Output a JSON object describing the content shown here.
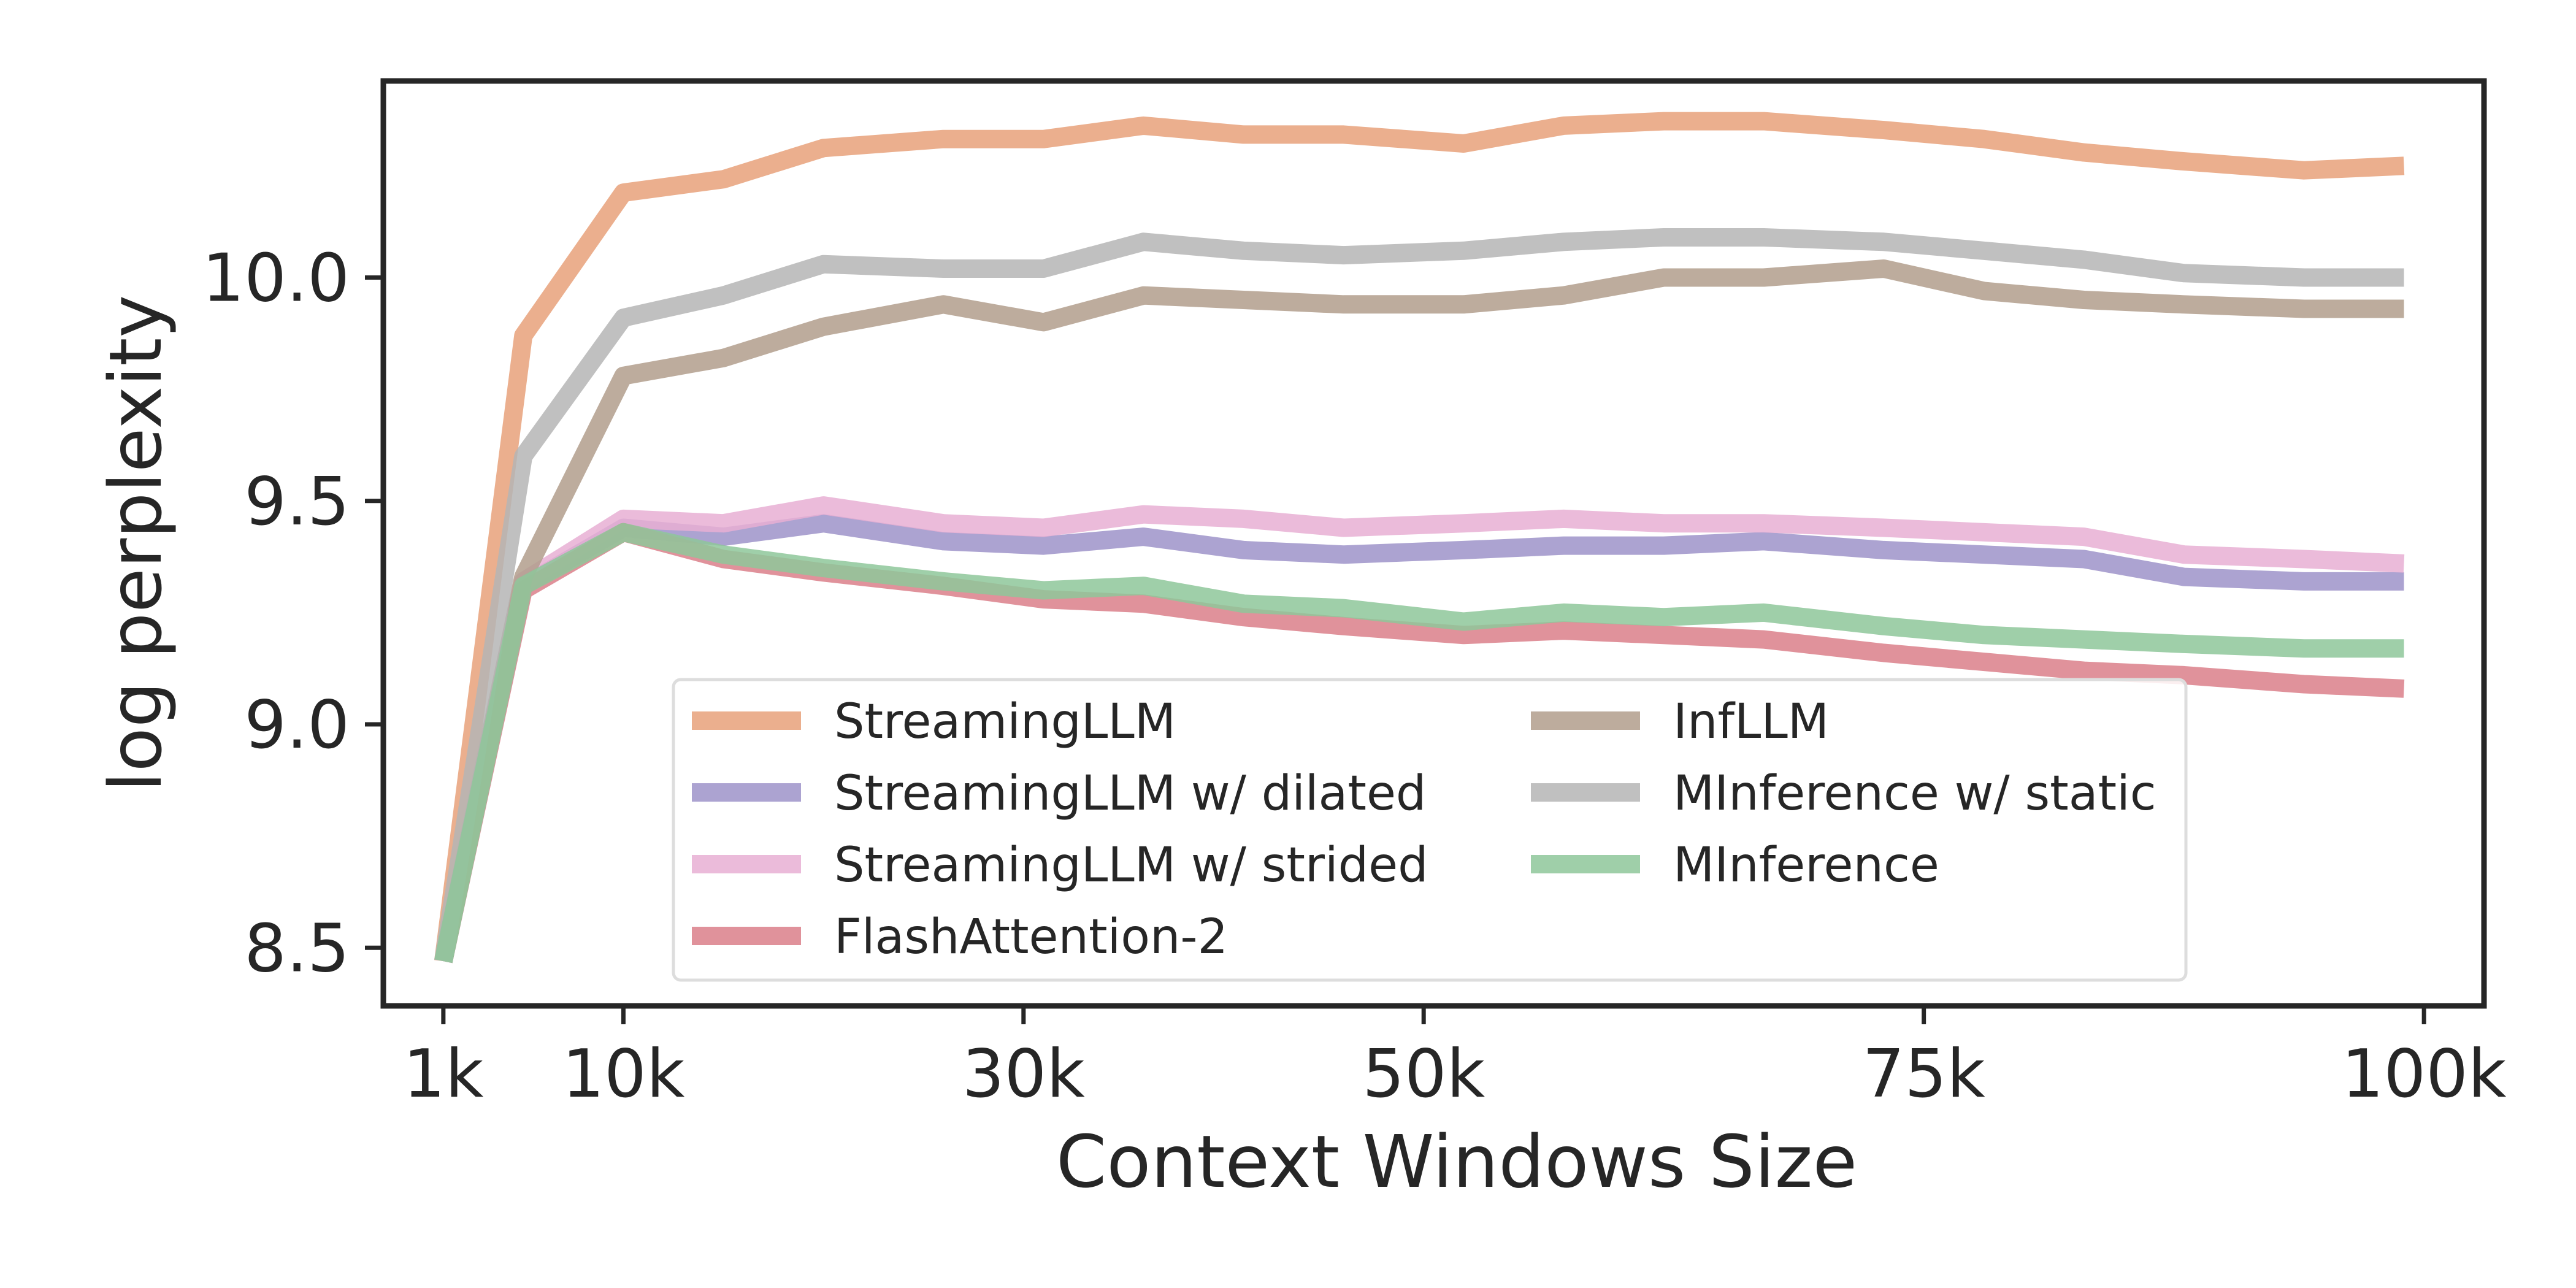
{
  "chart_data": {
    "type": "line",
    "title": "",
    "xlabel": "Context Windows Size",
    "ylabel": "log perplexity",
    "xlim": [
      -2000,
      103000
    ],
    "ylim": [
      8.37,
      10.44
    ],
    "x_ticks": [
      {
        "value": 1000,
        "label": "1k"
      },
      {
        "value": 10000,
        "label": "10k"
      },
      {
        "value": 30000,
        "label": "30k"
      },
      {
        "value": 50000,
        "label": "50k"
      },
      {
        "value": 75000,
        "label": "75k"
      },
      {
        "value": 100000,
        "label": "100k"
      }
    ],
    "y_ticks": [
      {
        "value": 8.5,
        "label": "8.5"
      },
      {
        "value": 9.0,
        "label": "9.0"
      },
      {
        "value": 9.5,
        "label": "9.5"
      },
      {
        "value": 10.0,
        "label": "10.0"
      }
    ],
    "grid": false,
    "legend": {
      "placement": "lower-center",
      "columns": 2
    },
    "x": [
      1000,
      5000,
      10000,
      15000,
      20000,
      26000,
      31000,
      36000,
      41000,
      46000,
      52000,
      57000,
      62000,
      67000,
      73000,
      78000,
      83000,
      88000,
      94000,
      99000
    ],
    "series": [
      {
        "name": "StreamingLLM",
        "color": "#e8a17a",
        "legend_col": 0,
        "legend_row": 0,
        "values": [
          8.47,
          9.87,
          10.19,
          10.22,
          10.29,
          10.31,
          10.31,
          10.34,
          10.32,
          10.32,
          10.3,
          10.34,
          10.35,
          10.35,
          10.33,
          10.31,
          10.28,
          10.26,
          10.24,
          10.25
        ]
      },
      {
        "name": "StreamingLLM w/ dilated",
        "color": "#9d93c9",
        "legend_col": 0,
        "legend_row": 1,
        "values": [
          8.47,
          9.31,
          9.44,
          9.42,
          9.45,
          9.41,
          9.4,
          9.42,
          9.39,
          9.38,
          9.39,
          9.4,
          9.4,
          9.41,
          9.39,
          9.38,
          9.37,
          9.33,
          9.32,
          9.32
        ]
      },
      {
        "name": "StreamingLLM w/ strided",
        "color": "#e8afd3",
        "legend_col": 0,
        "legend_row": 2,
        "values": [
          8.47,
          9.32,
          9.46,
          9.45,
          9.49,
          9.45,
          9.44,
          9.47,
          9.46,
          9.44,
          9.45,
          9.46,
          9.45,
          9.45,
          9.44,
          9.43,
          9.42,
          9.38,
          9.37,
          9.36
        ]
      },
      {
        "name": "FlashAttention-2",
        "color": "#db7f8a",
        "legend_col": 0,
        "legend_row": 3,
        "values": [
          8.47,
          9.3,
          9.43,
          9.37,
          9.34,
          9.31,
          9.28,
          9.27,
          9.24,
          9.22,
          9.2,
          9.21,
          9.2,
          9.19,
          9.16,
          9.14,
          9.12,
          9.11,
          9.09,
          9.08
        ]
      },
      {
        "name": "InfLLM",
        "color": "#b29e8c",
        "legend_col": 1,
        "legend_row": 0,
        "values": [
          8.47,
          9.33,
          9.78,
          9.82,
          9.89,
          9.94,
          9.9,
          9.96,
          9.95,
          9.94,
          9.94,
          9.96,
          10.0,
          10.0,
          10.02,
          9.97,
          9.95,
          9.94,
          9.93,
          9.93
        ]
      },
      {
        "name": "MInference w/ static",
        "color": "#b5b5b5",
        "legend_col": 1,
        "legend_row": 1,
        "values": [
          8.47,
          9.6,
          9.91,
          9.96,
          10.03,
          10.02,
          10.02,
          10.08,
          10.06,
          10.05,
          10.06,
          10.08,
          10.09,
          10.09,
          10.08,
          10.06,
          10.04,
          10.01,
          10.0,
          10.0
        ]
      },
      {
        "name": "MInference",
        "color": "#8ec79a",
        "legend_col": 1,
        "legend_row": 2,
        "values": [
          8.47,
          9.31,
          9.43,
          9.38,
          9.35,
          9.32,
          9.3,
          9.31,
          9.27,
          9.26,
          9.23,
          9.25,
          9.24,
          9.25,
          9.22,
          9.2,
          9.19,
          9.18,
          9.17,
          9.17
        ]
      }
    ]
  }
}
